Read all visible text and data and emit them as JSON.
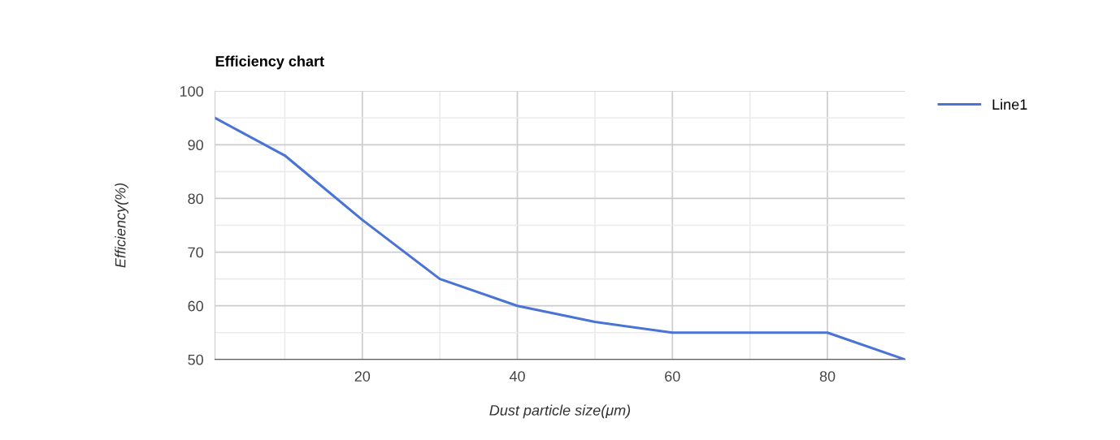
{
  "chart_data": {
    "type": "line",
    "title": "Efficiency chart",
    "xlabel": "Dust particle size(μm)",
    "ylabel": "Efficiency(%)",
    "x": [
      1,
      10,
      20,
      30,
      40,
      50,
      60,
      70,
      80,
      90
    ],
    "series": [
      {
        "name": "Line1",
        "color": "#4a73d6",
        "values": [
          95,
          88,
          76,
          65,
          60,
          57,
          55,
          55,
          55,
          50
        ]
      }
    ],
    "xlim": [
      1,
      90
    ],
    "ylim": [
      50,
      100
    ],
    "xticks": [
      {
        "value": 10,
        "label": null
      },
      20,
      {
        "value": 30,
        "label": null
      },
      40,
      {
        "value": 50,
        "label": null
      },
      60,
      {
        "value": 70,
        "label": null
      },
      80
    ],
    "yticks": [
      50,
      {
        "value": 55,
        "label": null
      },
      60,
      {
        "value": 65,
        "label": null
      },
      70,
      {
        "value": 75,
        "label": null
      },
      80,
      {
        "value": 85,
        "label": null
      },
      90,
      {
        "value": 95,
        "label": null
      },
      100
    ],
    "grid": true,
    "legend": "right",
    "marker": "none",
    "line_style": "solid"
  }
}
